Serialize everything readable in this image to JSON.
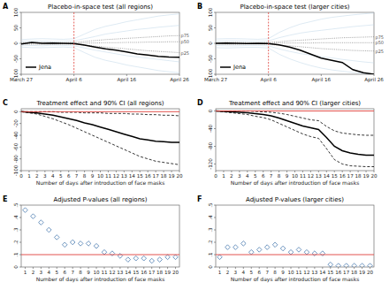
{
  "chart_data": [
    {
      "type": "line",
      "label": "A",
      "title": "Placebo-in-space test (all regions)",
      "x": [
        0,
        2,
        4,
        6,
        8,
        10,
        12,
        14,
        16,
        18,
        20,
        22,
        24,
        26,
        28,
        30
      ],
      "xlim": [
        0,
        30
      ],
      "xticks": [
        {
          "value": 0,
          "label": "March 27"
        },
        {
          "value": 10,
          "label": "April 6"
        },
        {
          "value": 20,
          "label": "April 16"
        },
        {
          "value": 30,
          "label": "April 26"
        }
      ],
      "ylim": [
        -100,
        100
      ],
      "yticks": [
        -100,
        -50,
        0,
        50,
        100
      ],
      "vline": 10,
      "legend": "lower left",
      "series": [
        {
          "color": "#bcd4e6",
          "values": [
            12,
            14,
            15,
            14,
            13,
            15,
            30,
            45,
            55,
            62,
            70,
            76,
            82,
            88,
            92,
            95
          ]
        },
        {
          "color": "#bcd4e6",
          "values": [
            -12,
            -14,
            -14,
            -13,
            -12,
            -14,
            -30,
            -45,
            -55,
            -62,
            -70,
            -76,
            -82,
            -88,
            -92,
            -95
          ]
        },
        {
          "color": "#bcd4e6",
          "values": [
            6,
            8,
            7,
            6,
            7,
            8,
            15,
            22,
            30,
            35,
            40,
            45,
            48,
            52,
            55,
            58
          ]
        },
        {
          "color": "#bcd4e6",
          "values": [
            -6,
            -7,
            -8,
            -6,
            -7,
            -8,
            -15,
            -22,
            -28,
            -34,
            -40,
            -44,
            -48,
            -52,
            -56,
            -60
          ]
        },
        {
          "name": "p75",
          "color": "#8c8c8c",
          "line_style": "dotted",
          "values": [
            2,
            3,
            3,
            3,
            2,
            3,
            6,
            9,
            12,
            14,
            16,
            18,
            20,
            22,
            24,
            25
          ]
        },
        {
          "name": "p50",
          "color": "#8c8c8c",
          "line_style": "dotted",
          "values": [
            0,
            0,
            0,
            0,
            0,
            0,
            1,
            1,
            2,
            2,
            3,
            3,
            4,
            4,
            5,
            5
          ]
        },
        {
          "name": "p25",
          "color": "#8c8c8c",
          "line_style": "dotted",
          "values": [
            -2,
            -3,
            -3,
            -3,
            -2,
            -3,
            -6,
            -9,
            -12,
            -15,
            -18,
            -21,
            -24,
            -26,
            -28,
            -30
          ]
        },
        {
          "name": "Jena",
          "color": "#000000",
          "values": [
            -2,
            3,
            0,
            1,
            0,
            -1,
            -6,
            -12,
            -18,
            -22,
            -28,
            -34,
            -38,
            -42,
            -44,
            -45
          ]
        }
      ]
    },
    {
      "type": "line",
      "label": "B",
      "title": "Placebo-in-space test (larger cities)",
      "x": [
        0,
        2,
        4,
        6,
        8,
        10,
        12,
        14,
        16,
        18,
        20,
        22,
        24,
        26,
        28,
        30
      ],
      "xlim": [
        0,
        30
      ],
      "xticks": [
        {
          "value": 0,
          "label": "March 27"
        },
        {
          "value": 10,
          "label": "April 6"
        },
        {
          "value": 20,
          "label": "April 16"
        },
        {
          "value": 30,
          "label": "April 26"
        }
      ],
      "ylim": [
        -100,
        100
      ],
      "yticks": [
        -100,
        -50,
        0,
        50,
        100
      ],
      "vline": 10,
      "legend": "lower left",
      "series": [
        {
          "color": "#bcd4e6",
          "values": [
            14,
            15,
            15,
            14,
            13,
            15,
            35,
            50,
            62,
            70,
            78,
            84,
            88,
            92,
            95,
            98
          ]
        },
        {
          "color": "#bcd4e6",
          "values": [
            -14,
            -15,
            -14,
            -13,
            -13,
            -15,
            -35,
            -50,
            -62,
            -72,
            -80,
            -86,
            -90,
            -94,
            -97,
            -99
          ]
        },
        {
          "color": "#bcd4e6",
          "values": [
            7,
            8,
            8,
            7,
            7,
            8,
            18,
            26,
            33,
            38,
            42,
            46,
            50,
            54,
            57,
            60
          ]
        },
        {
          "color": "#bcd4e6",
          "values": [
            -7,
            -8,
            -8,
            -7,
            -7,
            -8,
            -18,
            -26,
            -33,
            -38,
            -43,
            -47,
            -52,
            -56,
            -60,
            -63
          ]
        },
        {
          "name": "p75",
          "color": "#8c8c8c",
          "line_style": "dotted",
          "values": [
            2,
            3,
            3,
            2,
            2,
            3,
            5,
            8,
            10,
            12,
            14,
            16,
            18,
            19,
            20,
            21
          ]
        },
        {
          "name": "p50",
          "color": "#8c8c8c",
          "line_style": "dotted",
          "values": [
            0,
            0,
            0,
            0,
            0,
            0,
            1,
            1,
            1,
            1,
            2,
            2,
            2,
            2,
            2,
            2
          ]
        },
        {
          "name": "p25",
          "color": "#8c8c8c",
          "line_style": "dotted",
          "values": [
            -2,
            -3,
            -3,
            -2,
            -2,
            -3,
            -6,
            -8,
            -11,
            -14,
            -17,
            -19,
            -21,
            -23,
            -24,
            -25
          ]
        },
        {
          "name": "Jena",
          "color": "#000000",
          "values": [
            0,
            1,
            0,
            -1,
            0,
            -1,
            -5,
            -12,
            -22,
            -35,
            -48,
            -55,
            -62,
            -85,
            -95,
            -100
          ]
        }
      ]
    },
    {
      "type": "line",
      "label": "C",
      "title": "Treatment effect and 90% CI (all regions)",
      "xlabel": "Number of days after introduction of face masks",
      "x": [
        0,
        1,
        2,
        3,
        4,
        5,
        6,
        7,
        8,
        9,
        10,
        11,
        12,
        13,
        14,
        15,
        16,
        17,
        18,
        19,
        20
      ],
      "xlim": [
        0,
        20
      ],
      "xticks": [
        0,
        1,
        2,
        3,
        4,
        5,
        6,
        7,
        8,
        9,
        10,
        11,
        12,
        13,
        14,
        15,
        16,
        17,
        18,
        19,
        20
      ],
      "ylim": [
        -100,
        5
      ],
      "yticks": [
        -100,
        -80,
        -60,
        -40,
        -20,
        0
      ],
      "hline": 0,
      "series": [
        {
          "color": "#000000",
          "line_style": "dashed",
          "values": [
            0,
            0,
            0,
            0,
            0,
            -1,
            -1,
            -1,
            -2,
            -2,
            -2,
            -3,
            -3,
            -3,
            -4,
            -4,
            -5,
            -5,
            -6,
            -6,
            -7
          ]
        },
        {
          "color": "#000000",
          "line_style": "dashed",
          "values": [
            0,
            -2,
            -4,
            -8,
            -12,
            -17,
            -22,
            -28,
            -34,
            -40,
            -46,
            -52,
            -58,
            -64,
            -70,
            -76,
            -80,
            -84,
            -86,
            -88,
            -90
          ]
        },
        {
          "color": "#000000",
          "values": [
            0,
            -1,
            -2,
            -4,
            -6,
            -9,
            -12,
            -15,
            -19,
            -22,
            -26,
            -30,
            -34,
            -38,
            -42,
            -46,
            -48,
            -50,
            -51,
            -52,
            -52
          ]
        }
      ]
    },
    {
      "type": "line",
      "label": "D",
      "title": "Treatment effect and 90% CI (larger cities)",
      "xlabel": "Number of days after introduction of face masks",
      "x": [
        0,
        1,
        2,
        3,
        4,
        5,
        6,
        7,
        8,
        9,
        10,
        11,
        12,
        13,
        14,
        15,
        16,
        17,
        18,
        19,
        20
      ],
      "xlim": [
        0,
        20
      ],
      "xticks": [
        0,
        1,
        2,
        3,
        4,
        5,
        6,
        7,
        8,
        9,
        10,
        11,
        12,
        13,
        14,
        15,
        16,
        17,
        18,
        19,
        20
      ],
      "ylim": [
        -135,
        5
      ],
      "yticks": [
        -120,
        -80,
        -40,
        0
      ],
      "hline": 0,
      "series": [
        {
          "color": "#000000",
          "line_style": "dashed",
          "values": [
            0,
            0,
            0,
            0,
            0,
            -1,
            -2,
            -3,
            -5,
            -8,
            -12,
            -16,
            -20,
            -22,
            -35,
            -45,
            -50,
            -52,
            -54,
            -55,
            -55
          ]
        },
        {
          "color": "#000000",
          "line_style": "dashed",
          "values": [
            0,
            -2,
            -4,
            -6,
            -8,
            -12,
            -15,
            -20,
            -28,
            -36,
            -44,
            -52,
            -58,
            -62,
            -85,
            -110,
            -120,
            -124,
            -125,
            -126,
            -126
          ]
        },
        {
          "color": "#000000",
          "values": [
            0,
            -1,
            -2,
            -3,
            -4,
            -6,
            -8,
            -11,
            -16,
            -22,
            -28,
            -34,
            -38,
            -42,
            -60,
            -80,
            -90,
            -95,
            -98,
            -100,
            -100
          ]
        }
      ]
    },
    {
      "type": "scatter",
      "label": "E",
      "title": "Adjusted P-values (all regions)",
      "xlabel": "Number of days after introduction of face masks",
      "x": [
        1,
        2,
        3,
        4,
        5,
        6,
        7,
        8,
        9,
        10,
        11,
        12,
        13,
        14,
        15,
        16,
        17,
        18,
        19,
        20
      ],
      "xlim": [
        0.5,
        20.5
      ],
      "xticks": [
        1,
        2,
        3,
        4,
        5,
        6,
        7,
        8,
        9,
        10,
        11,
        12,
        13,
        14,
        15,
        16,
        17,
        18,
        19,
        20
      ],
      "ylim": [
        0,
        0.5
      ],
      "yticks": [
        0,
        {
          "value": 0.1,
          "label": ".1"
        },
        {
          "value": 0.2,
          "label": ".2"
        },
        {
          "value": 0.3,
          "label": ".3"
        },
        {
          "value": 0.4,
          "label": ".4"
        },
        {
          "value": 0.5,
          "label": ".5"
        }
      ],
      "hline": 0.1,
      "marker": "diamond",
      "series": [
        {
          "color": "#4a7bb0",
          "values": [
            0.46,
            0.41,
            0.36,
            0.3,
            0.24,
            0.18,
            0.2,
            0.19,
            0.19,
            0.17,
            0.12,
            0.11,
            0.09,
            0.06,
            0.07,
            0.07,
            0.05,
            0.06,
            0.08,
            0.08
          ]
        }
      ]
    },
    {
      "type": "scatter",
      "label": "F",
      "title": "Adjusted P-values (larger cities)",
      "xlabel": "Number of days after introduction of face masks",
      "x": [
        1,
        2,
        3,
        4,
        5,
        6,
        7,
        8,
        9,
        10,
        11,
        12,
        13,
        14,
        15,
        16,
        17,
        18,
        19,
        20
      ],
      "xlim": [
        0.5,
        20.5
      ],
      "xticks": [
        1,
        2,
        3,
        4,
        5,
        6,
        7,
        8,
        9,
        10,
        11,
        12,
        13,
        14,
        15,
        16,
        17,
        18,
        19,
        20
      ],
      "ylim": [
        0,
        0.5
      ],
      "yticks": [
        0,
        {
          "value": 0.1,
          "label": ".1"
        },
        {
          "value": 0.2,
          "label": ".2"
        },
        {
          "value": 0.3,
          "label": ".3"
        },
        {
          "value": 0.4,
          "label": ".4"
        },
        {
          "value": 0.5,
          "label": ".5"
        }
      ],
      "hline": 0.1,
      "marker": "diamond",
      "series": [
        {
          "color": "#4a7bb0",
          "values": [
            0.08,
            0.16,
            0.16,
            0.19,
            0.12,
            0.14,
            0.16,
            0.18,
            0.15,
            0.12,
            0.14,
            0.12,
            0.11,
            0.11,
            0.02,
            0.01,
            0.01,
            0.01,
            0.01,
            0.01
          ]
        }
      ]
    }
  ]
}
